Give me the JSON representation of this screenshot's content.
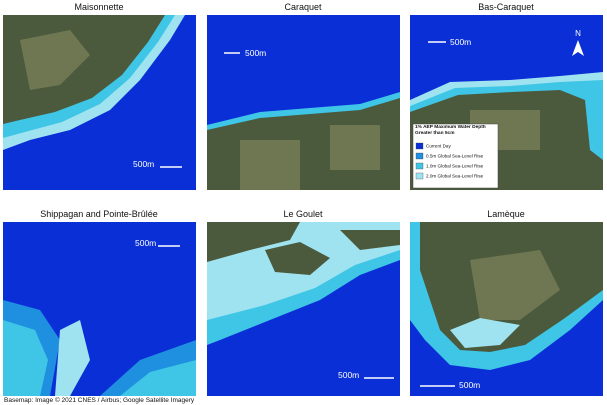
{
  "panels": [
    {
      "title": "Maisonnette",
      "scale": "500m"
    },
    {
      "title": "Caraquet",
      "scale": "500m"
    },
    {
      "title": "Bas-Caraquet",
      "scale": "500m"
    },
    {
      "title": "Shippagan and Pointe-Brûlée",
      "scale": "500m"
    },
    {
      "title": "Le Goulet",
      "scale": "500m"
    },
    {
      "title": "Lamèque",
      "scale": "500m"
    }
  ],
  "north": "N",
  "legend": {
    "title": "1% AEP Maximum Water Depth Greater than 5cm",
    "items": [
      {
        "label": "Current Day",
        "color": "#0a2fd6"
      },
      {
        "label": "0.5m Global Sea-Level Rise",
        "color": "#1f8fe0"
      },
      {
        "label": "1.0m Global Sea-Level Rise",
        "color": "#3fc6e6"
      },
      {
        "label": "2.0m Global Sea-Level Rise",
        "color": "#9fe3f0"
      }
    ]
  },
  "footer": "Basemap: Image © 2021 CNES / Airbus; Google Satellite Imagery"
}
